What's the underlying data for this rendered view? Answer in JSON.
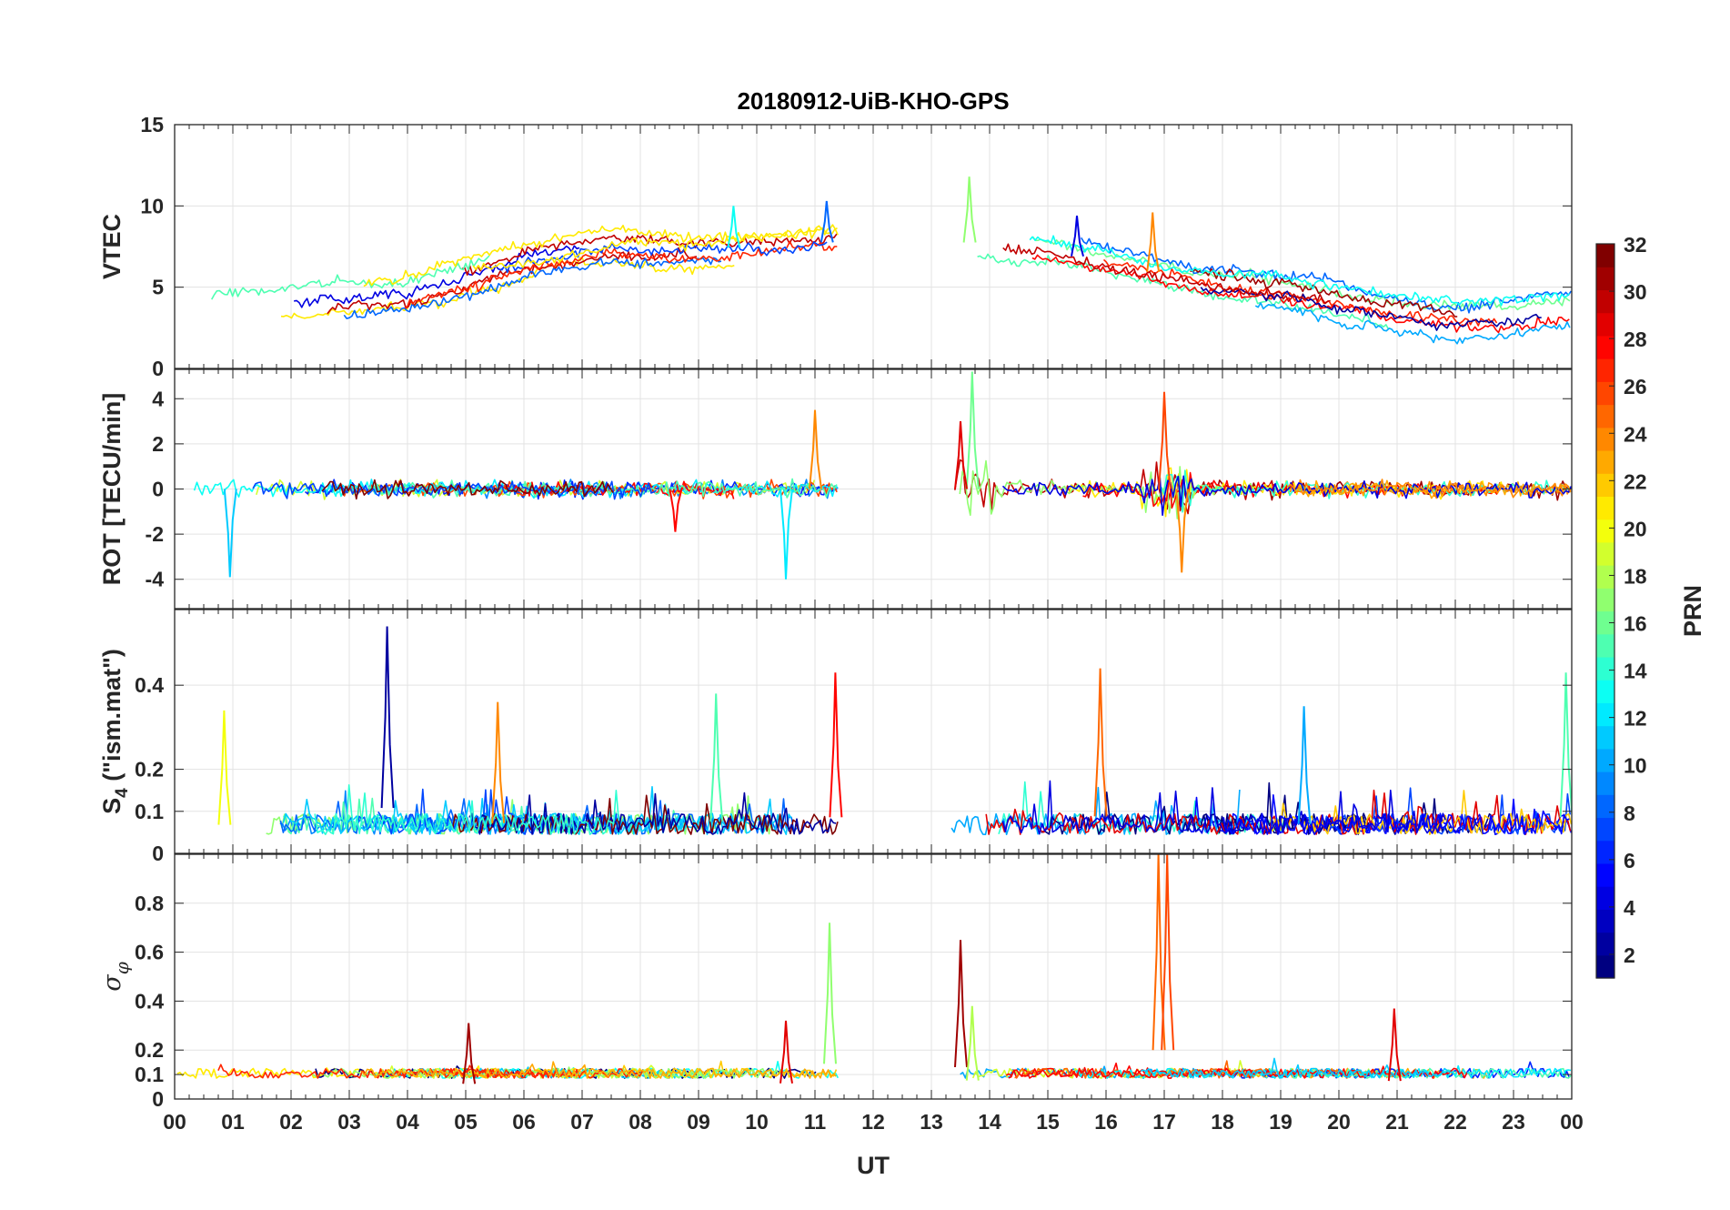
{
  "chart_data": {
    "type": "line",
    "title": "20180912-UiB-KHO-GPS",
    "xlabel": "UT",
    "x_tick_labels": [
      "00",
      "01",
      "02",
      "03",
      "04",
      "05",
      "06",
      "07",
      "08",
      "09",
      "10",
      "11",
      "12",
      "13",
      "14",
      "15",
      "16",
      "17",
      "18",
      "19",
      "20",
      "21",
      "22",
      "23",
      "00"
    ],
    "xlim_hours": [
      0,
      24
    ],
    "data_gap_hours": [
      11.4,
      12.5
    ],
    "grid": true,
    "colorbar": {
      "label": "PRN",
      "range": [
        1,
        32
      ],
      "tick_labels": [
        "2",
        "4",
        "6",
        "8",
        "10",
        "12",
        "14",
        "16",
        "18",
        "20",
        "22",
        "24",
        "26",
        "28",
        "30",
        "32"
      ],
      "tick_values": [
        2,
        4,
        6,
        8,
        10,
        12,
        14,
        16,
        18,
        20,
        22,
        24,
        26,
        28,
        30,
        32
      ],
      "colormap": "jet",
      "placement": "right"
    },
    "panels": [
      {
        "id": "vtec",
        "ylabel": "VTEC",
        "ylim": [
          0,
          15
        ],
        "y_ticks": [
          0,
          5,
          10,
          15
        ],
        "y_tick_labels": [
          "0",
          "5",
          "10",
          "15"
        ],
        "profile_hours": [
          0,
          2,
          4,
          6,
          7.5,
          9,
          11.4,
          12.5,
          13.5,
          15,
          16,
          17,
          18,
          19,
          20,
          21,
          22,
          23,
          24
        ],
        "profile_values": [
          3.5,
          4,
          4.5,
          6.5,
          7.5,
          7.3,
          7.8,
          7.2,
          7.8,
          7.3,
          6.5,
          5.8,
          5.2,
          4.8,
          4.2,
          3.5,
          3.0,
          3.3,
          3.6
        ],
        "events": [
          {
            "series": 17,
            "hour": 13.65,
            "value": 11.8
          },
          {
            "series": 24,
            "hour": 16.8,
            "value": 9.6
          },
          {
            "series": 13,
            "hour": 9.6,
            "value": 10.0
          },
          {
            "series": 8,
            "hour": 11.2,
            "value": 10.3
          },
          {
            "series": 4,
            "hour": 15.5,
            "value": 9.4
          }
        ]
      },
      {
        "id": "rot",
        "ylabel": "ROT [TECU/min]",
        "ylim": [
          -5.3,
          5.3
        ],
        "y_ticks": [
          -4,
          -2,
          0,
          2,
          4
        ],
        "y_tick_labels": [
          "-4",
          "-2",
          "0",
          "2",
          "4"
        ],
        "events": [
          {
            "series": 11,
            "hour": 0.95,
            "value": -3.9
          },
          {
            "series": 12,
            "hour": 10.5,
            "value": -4.0
          },
          {
            "series": 16,
            "hour": 13.7,
            "value": 5.2
          },
          {
            "series": 29,
            "hour": 13.5,
            "value": 3.0
          },
          {
            "series": 26,
            "hour": 17.0,
            "value": 4.3
          },
          {
            "series": 24,
            "hour": 17.3,
            "value": -3.7
          },
          {
            "series": 24,
            "hour": 11.0,
            "value": 3.5
          },
          {
            "series": 28,
            "hour": 8.6,
            "value": -1.9
          }
        ]
      },
      {
        "id": "s4",
        "ylabel": "S4 (\"ism.mat\")",
        "ylabel_main": "S",
        "ylabel_sub": "4",
        "ylabel_rest": " (\"ism.mat\")",
        "ylim": [
          0,
          0.58
        ],
        "y_ticks": [
          0,
          0.1,
          0.2,
          0.4
        ],
        "y_tick_labels": [
          "0",
          "0.1",
          "0.2",
          "0.4"
        ],
        "events": [
          {
            "series": 2,
            "hour": 3.65,
            "value": 0.54
          },
          {
            "series": 25,
            "hour": 15.9,
            "value": 0.44
          },
          {
            "series": 28,
            "hour": 11.35,
            "value": 0.43
          },
          {
            "series": 15,
            "hour": 23.9,
            "value": 0.43
          },
          {
            "series": 15,
            "hour": 9.3,
            "value": 0.38
          },
          {
            "series": 24,
            "hour": 5.55,
            "value": 0.36
          },
          {
            "series": 20,
            "hour": 0.85,
            "value": 0.34
          },
          {
            "series": 10,
            "hour": 19.4,
            "value": 0.35
          }
        ]
      },
      {
        "id": "sigma_phi",
        "ylabel": "σφ",
        "ylabel_main": "σ",
        "ylabel_sub": "φ",
        "ylim": [
          0,
          1.0
        ],
        "y_ticks": [
          0,
          0.1,
          0.2,
          0.4,
          0.6,
          0.8
        ],
        "y_tick_labels": [
          "0",
          "0.1",
          "0.2",
          "0.4",
          "0.6",
          "0.8"
        ],
        "events": [
          {
            "series": 25,
            "hour": 16.9,
            "value": 1.0
          },
          {
            "series": 26,
            "hour": 17.05,
            "value": 1.0
          },
          {
            "series": 17,
            "hour": 11.25,
            "value": 0.72
          },
          {
            "series": 31,
            "hour": 13.5,
            "value": 0.65
          },
          {
            "series": 18,
            "hour": 13.7,
            "value": 0.38
          },
          {
            "series": 29,
            "hour": 20.95,
            "value": 0.37
          },
          {
            "series": 29,
            "hour": 10.5,
            "value": 0.32
          },
          {
            "series": 31,
            "hour": 5.05,
            "value": 0.31
          }
        ]
      }
    ]
  }
}
